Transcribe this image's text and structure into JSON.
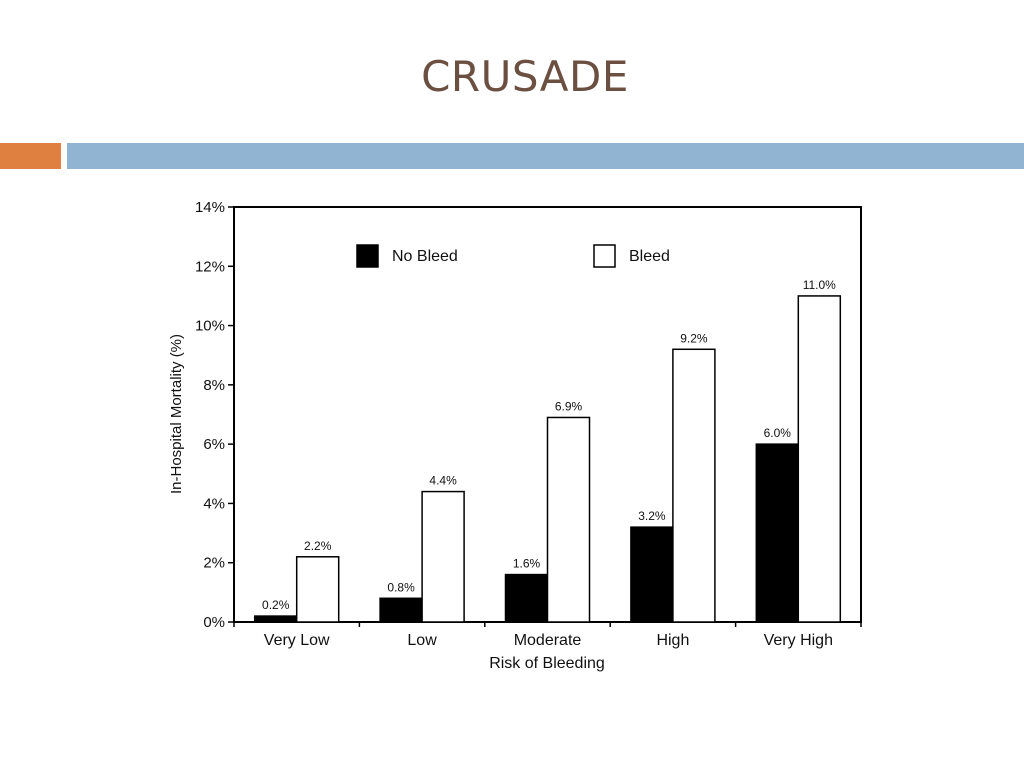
{
  "slide": {
    "title": "CRUSADE"
  },
  "chart_data": {
    "type": "bar",
    "categories": [
      "Very Low",
      "Low",
      "Moderate",
      "High",
      "Very High"
    ],
    "series": [
      {
        "name": "No Bleed",
        "values": [
          0.2,
          0.8,
          1.6,
          3.2,
          6.0
        ],
        "labels": [
          "0.2%",
          "0.8%",
          "1.6%",
          "3.2%",
          "6.0%"
        ],
        "color": "#000000"
      },
      {
        "name": "Bleed",
        "values": [
          2.2,
          4.4,
          6.9,
          9.2,
          11.0
        ],
        "labels": [
          "2.2%",
          "4.4%",
          "6.9%",
          "9.2%",
          "11.0%"
        ],
        "color": "#ffffff"
      }
    ],
    "xlabel": "Risk of Bleeding",
    "ylabel": "In-Hospital Mortality (%)",
    "ylim": [
      0,
      14
    ],
    "yticks": [
      "0%",
      "2%",
      "4%",
      "6%",
      "8%",
      "10%",
      "12%",
      "14%"
    ],
    "ytick_values": [
      0,
      2,
      4,
      6,
      8,
      10,
      12,
      14
    ],
    "legend": {
      "placement": "top"
    },
    "grid": false
  },
  "colors": {
    "title": "#6b5041",
    "band_orange": "#df8040",
    "band_blue": "#92b4d3"
  }
}
